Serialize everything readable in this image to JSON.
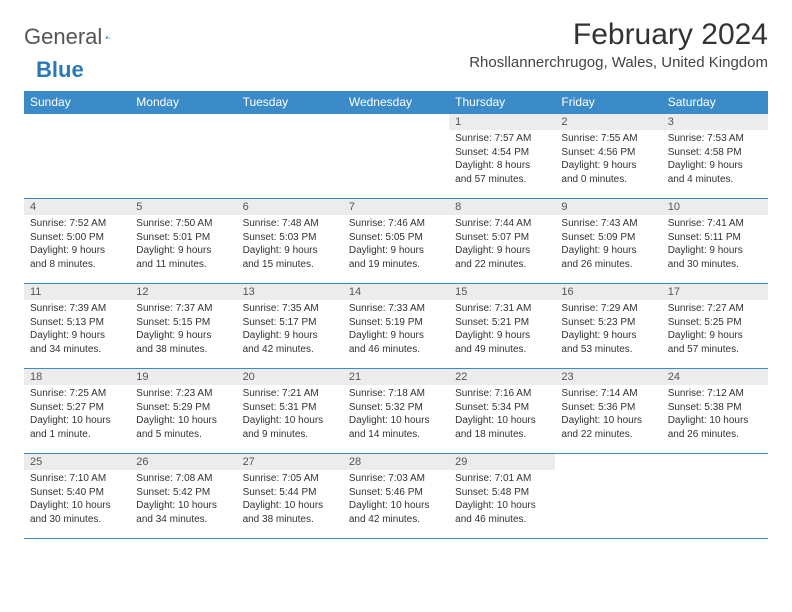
{
  "logo": {
    "text1": "General",
    "text2": "Blue"
  },
  "title": "February 2024",
  "location": "Rhosllannerchrugog, Wales, United Kingdom",
  "colors": {
    "header_bg": "#3b8bc9",
    "header_text": "#ffffff",
    "daynum_bg": "#ececec",
    "border": "#3b8bc9",
    "logo_accent": "#2a7ab9"
  },
  "dayNames": [
    "Sunday",
    "Monday",
    "Tuesday",
    "Wednesday",
    "Thursday",
    "Friday",
    "Saturday"
  ],
  "weeks": [
    [
      {
        "empty": true
      },
      {
        "empty": true
      },
      {
        "empty": true
      },
      {
        "empty": true
      },
      {
        "num": "1",
        "sunrise": "Sunrise: 7:57 AM",
        "sunset": "Sunset: 4:54 PM",
        "dl1": "Daylight: 8 hours",
        "dl2": "and 57 minutes."
      },
      {
        "num": "2",
        "sunrise": "Sunrise: 7:55 AM",
        "sunset": "Sunset: 4:56 PM",
        "dl1": "Daylight: 9 hours",
        "dl2": "and 0 minutes."
      },
      {
        "num": "3",
        "sunrise": "Sunrise: 7:53 AM",
        "sunset": "Sunset: 4:58 PM",
        "dl1": "Daylight: 9 hours",
        "dl2": "and 4 minutes."
      }
    ],
    [
      {
        "num": "4",
        "sunrise": "Sunrise: 7:52 AM",
        "sunset": "Sunset: 5:00 PM",
        "dl1": "Daylight: 9 hours",
        "dl2": "and 8 minutes."
      },
      {
        "num": "5",
        "sunrise": "Sunrise: 7:50 AM",
        "sunset": "Sunset: 5:01 PM",
        "dl1": "Daylight: 9 hours",
        "dl2": "and 11 minutes."
      },
      {
        "num": "6",
        "sunrise": "Sunrise: 7:48 AM",
        "sunset": "Sunset: 5:03 PM",
        "dl1": "Daylight: 9 hours",
        "dl2": "and 15 minutes."
      },
      {
        "num": "7",
        "sunrise": "Sunrise: 7:46 AM",
        "sunset": "Sunset: 5:05 PM",
        "dl1": "Daylight: 9 hours",
        "dl2": "and 19 minutes."
      },
      {
        "num": "8",
        "sunrise": "Sunrise: 7:44 AM",
        "sunset": "Sunset: 5:07 PM",
        "dl1": "Daylight: 9 hours",
        "dl2": "and 22 minutes."
      },
      {
        "num": "9",
        "sunrise": "Sunrise: 7:43 AM",
        "sunset": "Sunset: 5:09 PM",
        "dl1": "Daylight: 9 hours",
        "dl2": "and 26 minutes."
      },
      {
        "num": "10",
        "sunrise": "Sunrise: 7:41 AM",
        "sunset": "Sunset: 5:11 PM",
        "dl1": "Daylight: 9 hours",
        "dl2": "and 30 minutes."
      }
    ],
    [
      {
        "num": "11",
        "sunrise": "Sunrise: 7:39 AM",
        "sunset": "Sunset: 5:13 PM",
        "dl1": "Daylight: 9 hours",
        "dl2": "and 34 minutes."
      },
      {
        "num": "12",
        "sunrise": "Sunrise: 7:37 AM",
        "sunset": "Sunset: 5:15 PM",
        "dl1": "Daylight: 9 hours",
        "dl2": "and 38 minutes."
      },
      {
        "num": "13",
        "sunrise": "Sunrise: 7:35 AM",
        "sunset": "Sunset: 5:17 PM",
        "dl1": "Daylight: 9 hours",
        "dl2": "and 42 minutes."
      },
      {
        "num": "14",
        "sunrise": "Sunrise: 7:33 AM",
        "sunset": "Sunset: 5:19 PM",
        "dl1": "Daylight: 9 hours",
        "dl2": "and 46 minutes."
      },
      {
        "num": "15",
        "sunrise": "Sunrise: 7:31 AM",
        "sunset": "Sunset: 5:21 PM",
        "dl1": "Daylight: 9 hours",
        "dl2": "and 49 minutes."
      },
      {
        "num": "16",
        "sunrise": "Sunrise: 7:29 AM",
        "sunset": "Sunset: 5:23 PM",
        "dl1": "Daylight: 9 hours",
        "dl2": "and 53 minutes."
      },
      {
        "num": "17",
        "sunrise": "Sunrise: 7:27 AM",
        "sunset": "Sunset: 5:25 PM",
        "dl1": "Daylight: 9 hours",
        "dl2": "and 57 minutes."
      }
    ],
    [
      {
        "num": "18",
        "sunrise": "Sunrise: 7:25 AM",
        "sunset": "Sunset: 5:27 PM",
        "dl1": "Daylight: 10 hours",
        "dl2": "and 1 minute."
      },
      {
        "num": "19",
        "sunrise": "Sunrise: 7:23 AM",
        "sunset": "Sunset: 5:29 PM",
        "dl1": "Daylight: 10 hours",
        "dl2": "and 5 minutes."
      },
      {
        "num": "20",
        "sunrise": "Sunrise: 7:21 AM",
        "sunset": "Sunset: 5:31 PM",
        "dl1": "Daylight: 10 hours",
        "dl2": "and 9 minutes."
      },
      {
        "num": "21",
        "sunrise": "Sunrise: 7:18 AM",
        "sunset": "Sunset: 5:32 PM",
        "dl1": "Daylight: 10 hours",
        "dl2": "and 14 minutes."
      },
      {
        "num": "22",
        "sunrise": "Sunrise: 7:16 AM",
        "sunset": "Sunset: 5:34 PM",
        "dl1": "Daylight: 10 hours",
        "dl2": "and 18 minutes."
      },
      {
        "num": "23",
        "sunrise": "Sunrise: 7:14 AM",
        "sunset": "Sunset: 5:36 PM",
        "dl1": "Daylight: 10 hours",
        "dl2": "and 22 minutes."
      },
      {
        "num": "24",
        "sunrise": "Sunrise: 7:12 AM",
        "sunset": "Sunset: 5:38 PM",
        "dl1": "Daylight: 10 hours",
        "dl2": "and 26 minutes."
      }
    ],
    [
      {
        "num": "25",
        "sunrise": "Sunrise: 7:10 AM",
        "sunset": "Sunset: 5:40 PM",
        "dl1": "Daylight: 10 hours",
        "dl2": "and 30 minutes."
      },
      {
        "num": "26",
        "sunrise": "Sunrise: 7:08 AM",
        "sunset": "Sunset: 5:42 PM",
        "dl1": "Daylight: 10 hours",
        "dl2": "and 34 minutes."
      },
      {
        "num": "27",
        "sunrise": "Sunrise: 7:05 AM",
        "sunset": "Sunset: 5:44 PM",
        "dl1": "Daylight: 10 hours",
        "dl2": "and 38 minutes."
      },
      {
        "num": "28",
        "sunrise": "Sunrise: 7:03 AM",
        "sunset": "Sunset: 5:46 PM",
        "dl1": "Daylight: 10 hours",
        "dl2": "and 42 minutes."
      },
      {
        "num": "29",
        "sunrise": "Sunrise: 7:01 AM",
        "sunset": "Sunset: 5:48 PM",
        "dl1": "Daylight: 10 hours",
        "dl2": "and 46 minutes."
      },
      {
        "empty": true
      },
      {
        "empty": true
      }
    ]
  ]
}
